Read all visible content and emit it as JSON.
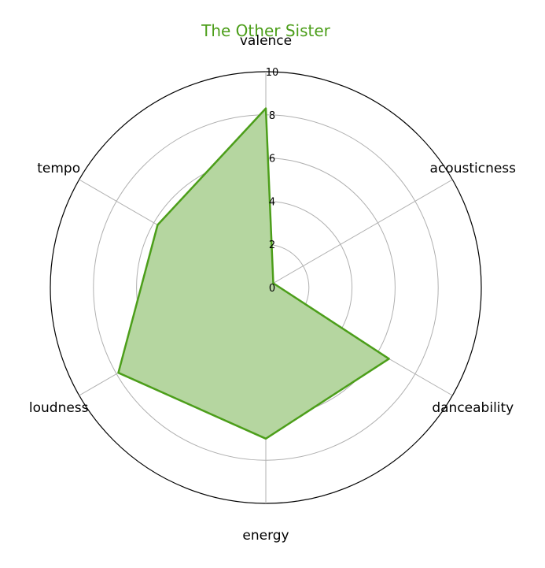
{
  "chart_data": {
    "type": "radar",
    "title": "The Other Sister",
    "axes": [
      "valence",
      "acousticness",
      "danceability",
      "energy",
      "loudness",
      "tempo"
    ],
    "values": [
      8.3,
      0.4,
      6.6,
      7.0,
      7.9,
      5.8
    ],
    "rlim": [
      0,
      10
    ],
    "rticks": [
      "0",
      "2",
      "4",
      "6",
      "8",
      "10"
    ],
    "grid": true,
    "colors": {
      "line": "#4c9e1a",
      "fill": "#b5d6a0",
      "grid": "#b0b0b0",
      "outer": "#000000"
    }
  }
}
